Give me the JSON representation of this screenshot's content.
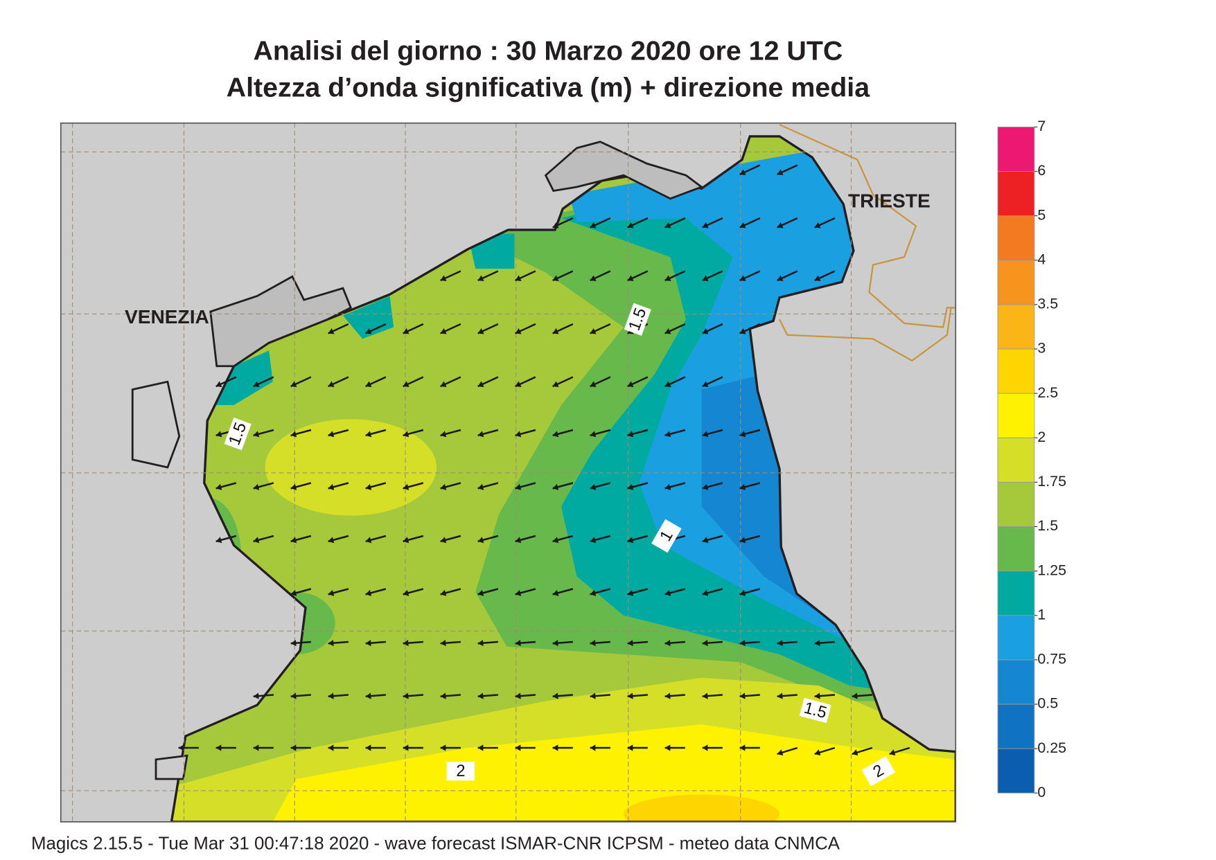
{
  "header": {
    "title_line1": "Analisi del giorno :  30   Marzo   2020   ore 12 UTC",
    "title_line2": "Altezza d’onda significativa (m) + direzione media"
  },
  "places": {
    "venezia": "VENEZIA",
    "trieste": "TRIESTE"
  },
  "contour_labels": [
    "1.5",
    "1.5",
    "1",
    "1.5",
    "2",
    "2"
  ],
  "colorbar": {
    "ticks": [
      0,
      0.25,
      0.5,
      0.75,
      1,
      1.25,
      1.5,
      1.75,
      2,
      2.5,
      3,
      3.5,
      4,
      5,
      6,
      7
    ],
    "colors": [
      "#0b5db0",
      "#1072c2",
      "#1587d2",
      "#1aa0e0",
      "#00aaa0",
      "#68b94c",
      "#a5c93b",
      "#d6df27",
      "#fff200",
      "#ffd500",
      "#fbb517",
      "#f7941d",
      "#f37a21",
      "#ed2024",
      "#ec1871"
    ]
  },
  "footer": "Magics 2.15.5 - Tue Mar 31 00:47:18 2020 - wave forecast  ISMAR-CNR  ICPSM - meteo data   CNMCA"
}
